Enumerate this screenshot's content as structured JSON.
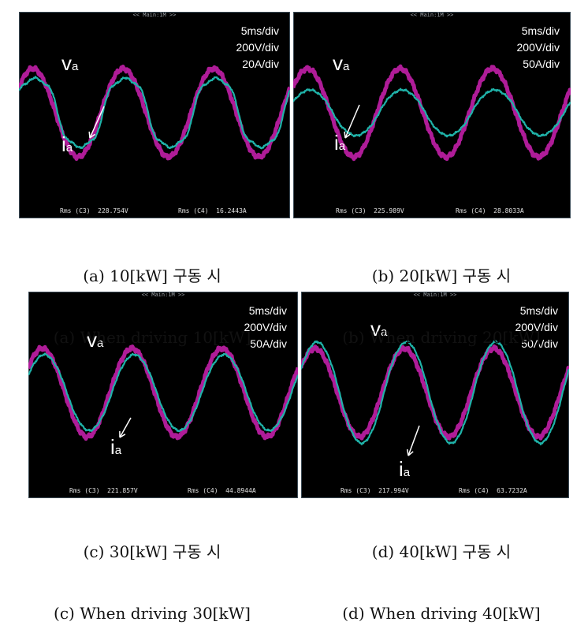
{
  "chart_data": [
    {
      "type": "line",
      "panel": "a",
      "scope_title": "<< Main:1M >>",
      "settings": [
        "5ms/div",
        "200V/div",
        "20A/div"
      ],
      "series": [
        {
          "name": "va",
          "color": "#c21fa8",
          "amplitude_div": 1.9,
          "distortion": 0.0
        },
        {
          "name": "ia",
          "color": "#1fb3a9",
          "amplitude_div": 1.6,
          "distortion": 0.35
        }
      ],
      "voltage_label": {
        "main": "v",
        "sub": "a"
      },
      "current_label": {
        "main": "i",
        "sub": "a"
      },
      "rms": {
        "c3": "Rms (C3)  228.754V",
        "c4": "Rms (C4)  16.2443A"
      },
      "caption_ko": "(a) 10[kW] 구동 시",
      "caption_en": "(a) When driving 10[kW]"
    },
    {
      "type": "line",
      "panel": "b",
      "scope_title": "<< Main:1M >>",
      "settings": [
        "5ms/div",
        "200V/div",
        "50A/div"
      ],
      "series": [
        {
          "name": "va",
          "color": "#c21fa8",
          "amplitude_div": 1.9,
          "distortion": 0.0
        },
        {
          "name": "ia",
          "color": "#1fb3a9",
          "amplitude_div": 1.0,
          "distortion": 0.08
        }
      ],
      "voltage_label": {
        "main": "v",
        "sub": "a"
      },
      "current_label": {
        "main": "i",
        "sub": "a"
      },
      "rms": {
        "c3": "Rms (C3)  225.989V",
        "c4": "Rms (C4)  28.8033A"
      },
      "caption_ko": "(b) 20[kW] 구동 시",
      "caption_en": "(b) When driving 20[kW]"
    },
    {
      "type": "line",
      "panel": "c",
      "scope_title": "<< Main:1M >>",
      "settings": [
        "5ms/div",
        "200V/div",
        "50A/div"
      ],
      "series": [
        {
          "name": "va",
          "color": "#c21fa8",
          "amplitude_div": 1.9,
          "distortion": 0.0
        },
        {
          "name": "ia",
          "color": "#1fb3a9",
          "amplitude_div": 1.65,
          "distortion": 0.05
        }
      ],
      "voltage_label": {
        "main": "v",
        "sub": "a"
      },
      "current_label": {
        "main": "i",
        "sub": "a"
      },
      "rms": {
        "c3": "Rms (C3)  221.857V",
        "c4": "Rms (C4)  44.8944A"
      },
      "caption_ko": "(c) 30[kW] 구동 시",
      "caption_en": "(c) When driving 30[kW]"
    },
    {
      "type": "line",
      "panel": "d",
      "scope_title": "<< Main:1M >>",
      "settings": [
        "5ms/div",
        "200V/div",
        "50A/div"
      ],
      "series": [
        {
          "name": "va",
          "color": "#c21fa8",
          "amplitude_div": 1.9,
          "distortion": 0.0
        },
        {
          "name": "ia",
          "color": "#1fb3a9",
          "amplitude_div": 2.2,
          "distortion": 0.05
        }
      ],
      "voltage_label": {
        "main": "v",
        "sub": "a"
      },
      "current_label": {
        "main": "i",
        "sub": "a"
      },
      "rms": {
        "c3": "Rms (C3)  217.994V",
        "c4": "Rms (C4)  63.7232A"
      },
      "caption_ko": "(d) 40[kW] 구동 시",
      "caption_en": "(d) When driving 40[kW]"
    }
  ]
}
